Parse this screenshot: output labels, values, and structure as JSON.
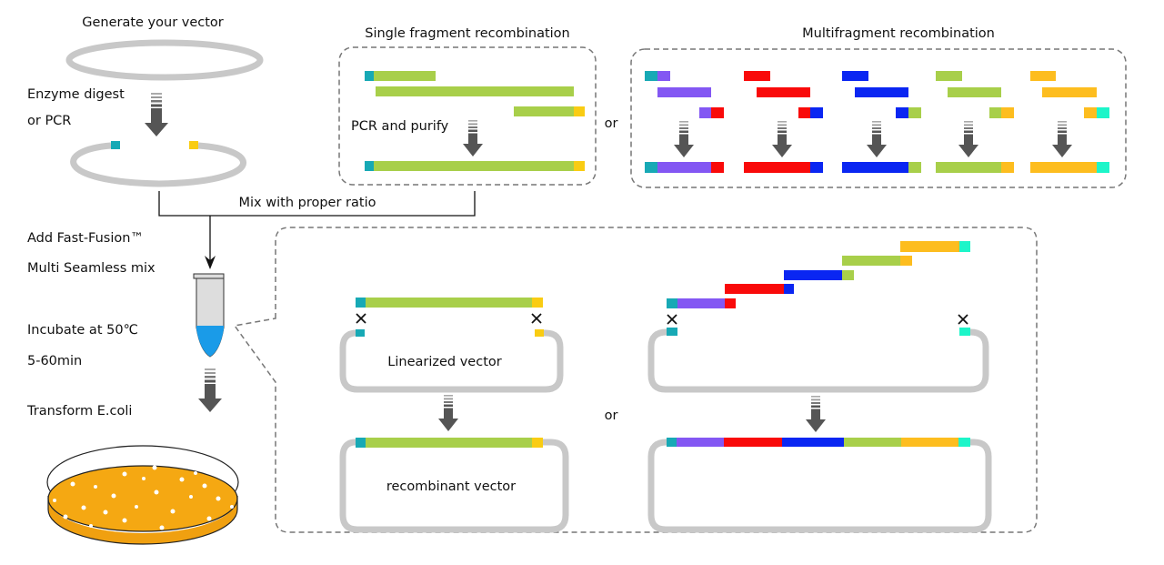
{
  "labels": {
    "generate_vector": "Generate your vector",
    "enzyme_digest": "Enzyme digest",
    "or_pcr": "or PCR",
    "single_title": "Single fragment recombination",
    "pcr_purify": "PCR and purify",
    "or_top": "or",
    "multi_title": "Multifragment recombination",
    "mix_ratio": "Mix with proper ratio",
    "add_mix_1": "Add Fast-Fusion™",
    "add_mix_2": "Multi Seamless mix",
    "incubate_1": "Incubate at 50℃",
    "incubate_2": "5-60min",
    "transform": "Transform E.coli",
    "linearized_vector": "Linearized vector",
    "recombinant_vector": "recombinant vector",
    "or_bottom": "or"
  },
  "colors": {
    "homology_left": "#17a9b5",
    "insert": "#a8cf4a",
    "homology_right": "#f9cc13",
    "fragment_1": "#8357f3",
    "fragment_2": "#f90a0a",
    "fragment_3": "#0a26f2",
    "fragment_4": "#a8cf4a",
    "fragment_5": "#fdbd1f",
    "homology_end": "#1df5c9",
    "vector": "#c8c8c8",
    "agar": "#f0a010",
    "liquid": "#1a9be8"
  },
  "icons": [
    "process-arrow-icon",
    "x-mark-icon",
    "tube-icon",
    "petri-dish-icon"
  ]
}
